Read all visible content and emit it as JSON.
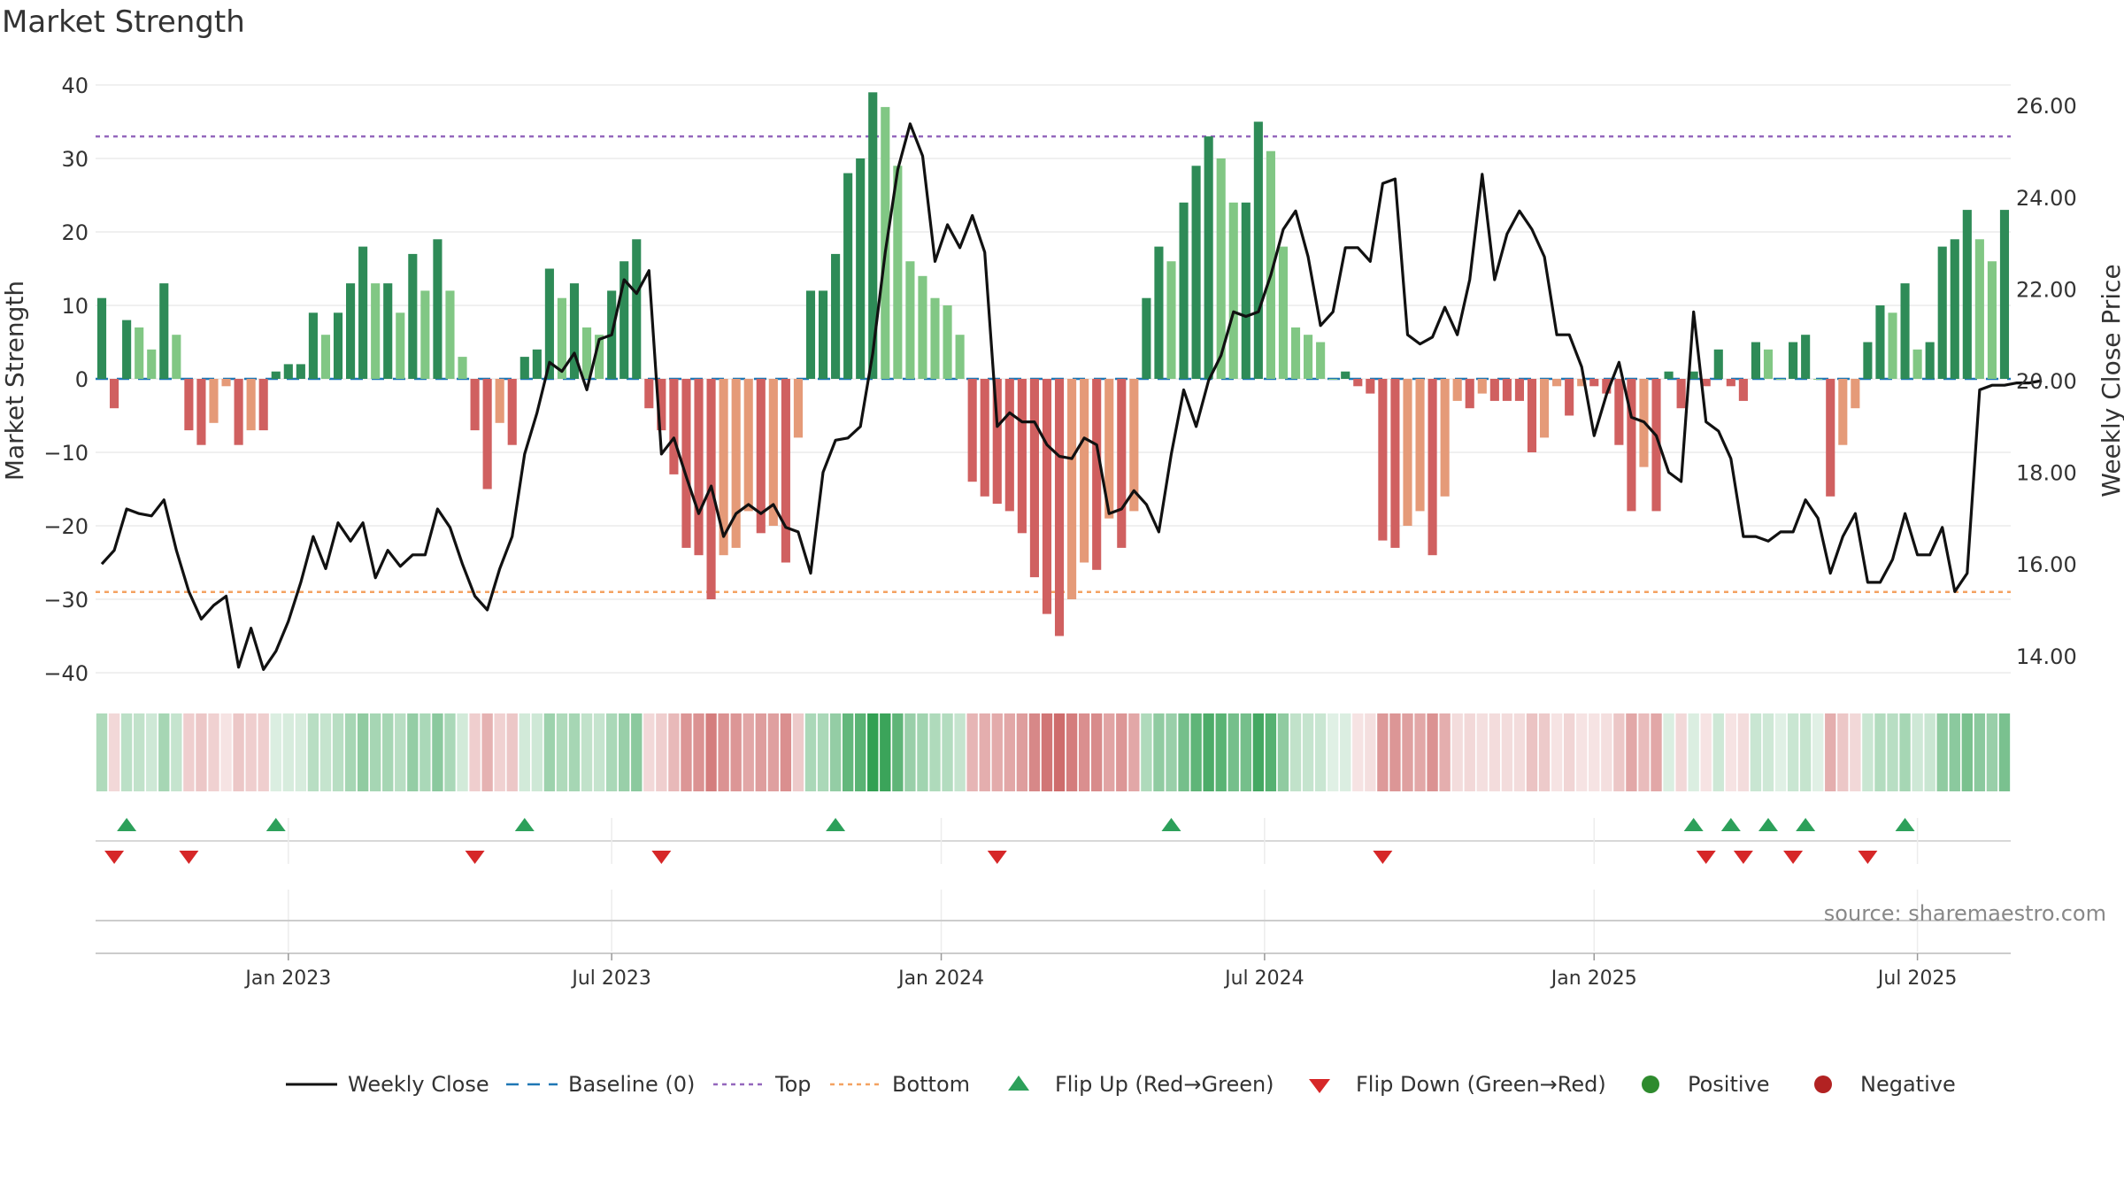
{
  "chart_data": {
    "type": "bar",
    "title": "Market Strength",
    "ylabel": "Market Strength",
    "y2label": "Weekly Close Price",
    "ylim": [
      -42,
      42
    ],
    "y2lim": [
      12.4,
      26.2
    ],
    "yticks": [
      40,
      30,
      20,
      10,
      0,
      -10,
      -20,
      -30,
      -40
    ],
    "yticklabels": [
      "40",
      "30",
      "20",
      "10",
      "0",
      "−10",
      "−20",
      "−30",
      "−40"
    ],
    "y2ticks": [
      26,
      24,
      22,
      20,
      18,
      16,
      14
    ],
    "y2ticklabels": [
      "26.00",
      "24.00",
      "22.00",
      "20.00",
      "18.00",
      "16.00",
      "14.00"
    ],
    "xticks": [
      {
        "label": "Jan 2023",
        "week": 15
      },
      {
        "label": "Jul 2023",
        "week": 41
      },
      {
        "label": "Jan 2024",
        "week": 67.5
      },
      {
        "label": "Jul 2024",
        "week": 93.5
      },
      {
        "label": "Jan 2025",
        "week": 120
      },
      {
        "label": "Jul 2025",
        "week": 146
      }
    ],
    "top_level": 33,
    "bottom_level": -29,
    "strength": [
      11,
      -4,
      8,
      7,
      4,
      13,
      6,
      -7,
      -9,
      -6,
      -1,
      -9,
      -7,
      -7,
      1,
      2,
      2,
      9,
      6,
      9,
      13,
      18,
      13,
      13,
      9,
      17,
      12,
      19,
      12,
      3,
      -7,
      -15,
      -6,
      -9,
      3,
      4,
      15,
      11,
      13,
      7,
      6,
      12,
      16,
      19,
      -4,
      -7,
      -13,
      -23,
      -24,
      -30,
      -24,
      -23,
      -18,
      -21,
      -20,
      -25,
      -8,
      12,
      12,
      17,
      28,
      30,
      39,
      37,
      29,
      16,
      14,
      11,
      10,
      6,
      -14,
      -16,
      -17,
      -18,
      -21,
      -27,
      -32,
      -35,
      -30,
      -25,
      -26,
      -19,
      -23,
      -18,
      11,
      18,
      16,
      24,
      29,
      33,
      30,
      24,
      24,
      35,
      31,
      18,
      7,
      6,
      5,
      0,
      1,
      -1,
      -2,
      -22,
      -23,
      -20,
      -18,
      -24,
      -16,
      -3,
      -4,
      -2,
      -3,
      -3,
      -3,
      -10,
      -8,
      -1,
      -5,
      -1,
      -1,
      -2,
      -9,
      -18,
      -12,
      -18,
      1,
      -4,
      1,
      -1,
      4,
      -1,
      -3,
      5,
      4,
      0,
      5,
      6,
      0,
      -16,
      -9,
      -4,
      5,
      10,
      9,
      13,
      4,
      5,
      18,
      19,
      23,
      19,
      16,
      23
    ],
    "close": [
      16.0,
      16.3,
      17.2,
      17.1,
      17.05,
      17.4,
      16.3,
      15.4,
      14.8,
      15.1,
      15.3,
      13.75,
      14.6,
      13.7,
      14.1,
      14.75,
      15.6,
      16.6,
      15.9,
      16.9,
      16.5,
      16.9,
      15.7,
      16.3,
      15.95,
      16.2,
      16.2,
      17.2,
      16.8,
      16.0,
      15.3,
      15.0,
      15.9,
      16.6,
      18.4,
      19.3,
      20.4,
      20.2,
      20.6,
      19.8,
      20.9,
      21.0,
      22.2,
      21.9,
      22.4,
      18.4,
      18.75,
      17.9,
      17.1,
      17.7,
      16.6,
      17.1,
      17.3,
      17.1,
      17.3,
      16.8,
      16.7,
      15.8,
      18.0,
      18.7,
      18.75,
      19.0,
      20.6,
      22.8,
      24.6,
      25.6,
      24.9,
      22.6,
      23.4,
      22.9,
      23.6,
      22.8,
      19.0,
      19.3,
      19.1,
      19.1,
      18.6,
      18.35,
      18.3,
      18.75,
      18.6,
      17.1,
      17.2,
      17.6,
      17.3,
      16.7,
      18.4,
      19.8,
      19.0,
      20.0,
      20.55,
      21.5,
      21.4,
      21.5,
      22.3,
      23.3,
      23.7,
      22.7,
      21.2,
      21.5,
      22.9,
      22.9,
      22.6,
      24.3,
      24.4,
      21.0,
      20.8,
      20.95,
      21.6,
      21.0,
      22.2,
      24.5,
      22.2,
      23.2,
      23.7,
      23.3,
      22.7,
      21.0,
      21.0,
      20.3,
      18.8,
      19.7,
      20.4,
      19.2,
      19.1,
      18.8,
      18.0,
      17.8,
      21.5,
      19.1,
      18.9,
      18.3,
      16.6,
      16.6,
      16.5,
      16.7,
      16.7,
      17.4,
      17.0,
      15.8,
      16.6,
      17.1,
      15.6,
      15.6,
      16.1,
      17.1,
      16.2,
      16.2,
      16.8,
      15.4,
      15.8,
      19.8,
      19.9,
      19.9,
      19.95,
      19.95,
      20.0
    ],
    "colors": {
      "positive_dark": "#2e8b57",
      "positive_light": "#81c784",
      "negative_dark": "#d06060",
      "negative_light": "#e59a78",
      "top_line": "#9467bd",
      "bottom_line": "#f4a261",
      "baseline": "#1f77b4",
      "close_line": "#111111",
      "flip_up": "#2ca05a",
      "flip_down": "#d62728",
      "positive_dot": "#2e8b2e",
      "negative_dot": "#b22222"
    },
    "flip_up_weeks": [
      2,
      14,
      34,
      59,
      86,
      128,
      131,
      134,
      137,
      145
    ],
    "flip_down_weeks": [
      1,
      7,
      30,
      45,
      72,
      103,
      129,
      132,
      136,
      142
    ],
    "legend": [
      {
        "label": "Weekly Close",
        "kind": "line"
      },
      {
        "label": "Baseline (0)",
        "kind": "dash"
      },
      {
        "label": "Top",
        "kind": "dot-purple"
      },
      {
        "label": "Bottom",
        "kind": "dot-orange"
      },
      {
        "label": "Flip Up (Red→Green)",
        "kind": "tri-up"
      },
      {
        "label": "Flip Down (Green→Red)",
        "kind": "tri-down"
      },
      {
        "label": "Positive",
        "kind": "dot-green"
      },
      {
        "label": "Negative",
        "kind": "dot-red"
      }
    ],
    "annotation": "source: sharemaestro.com"
  }
}
